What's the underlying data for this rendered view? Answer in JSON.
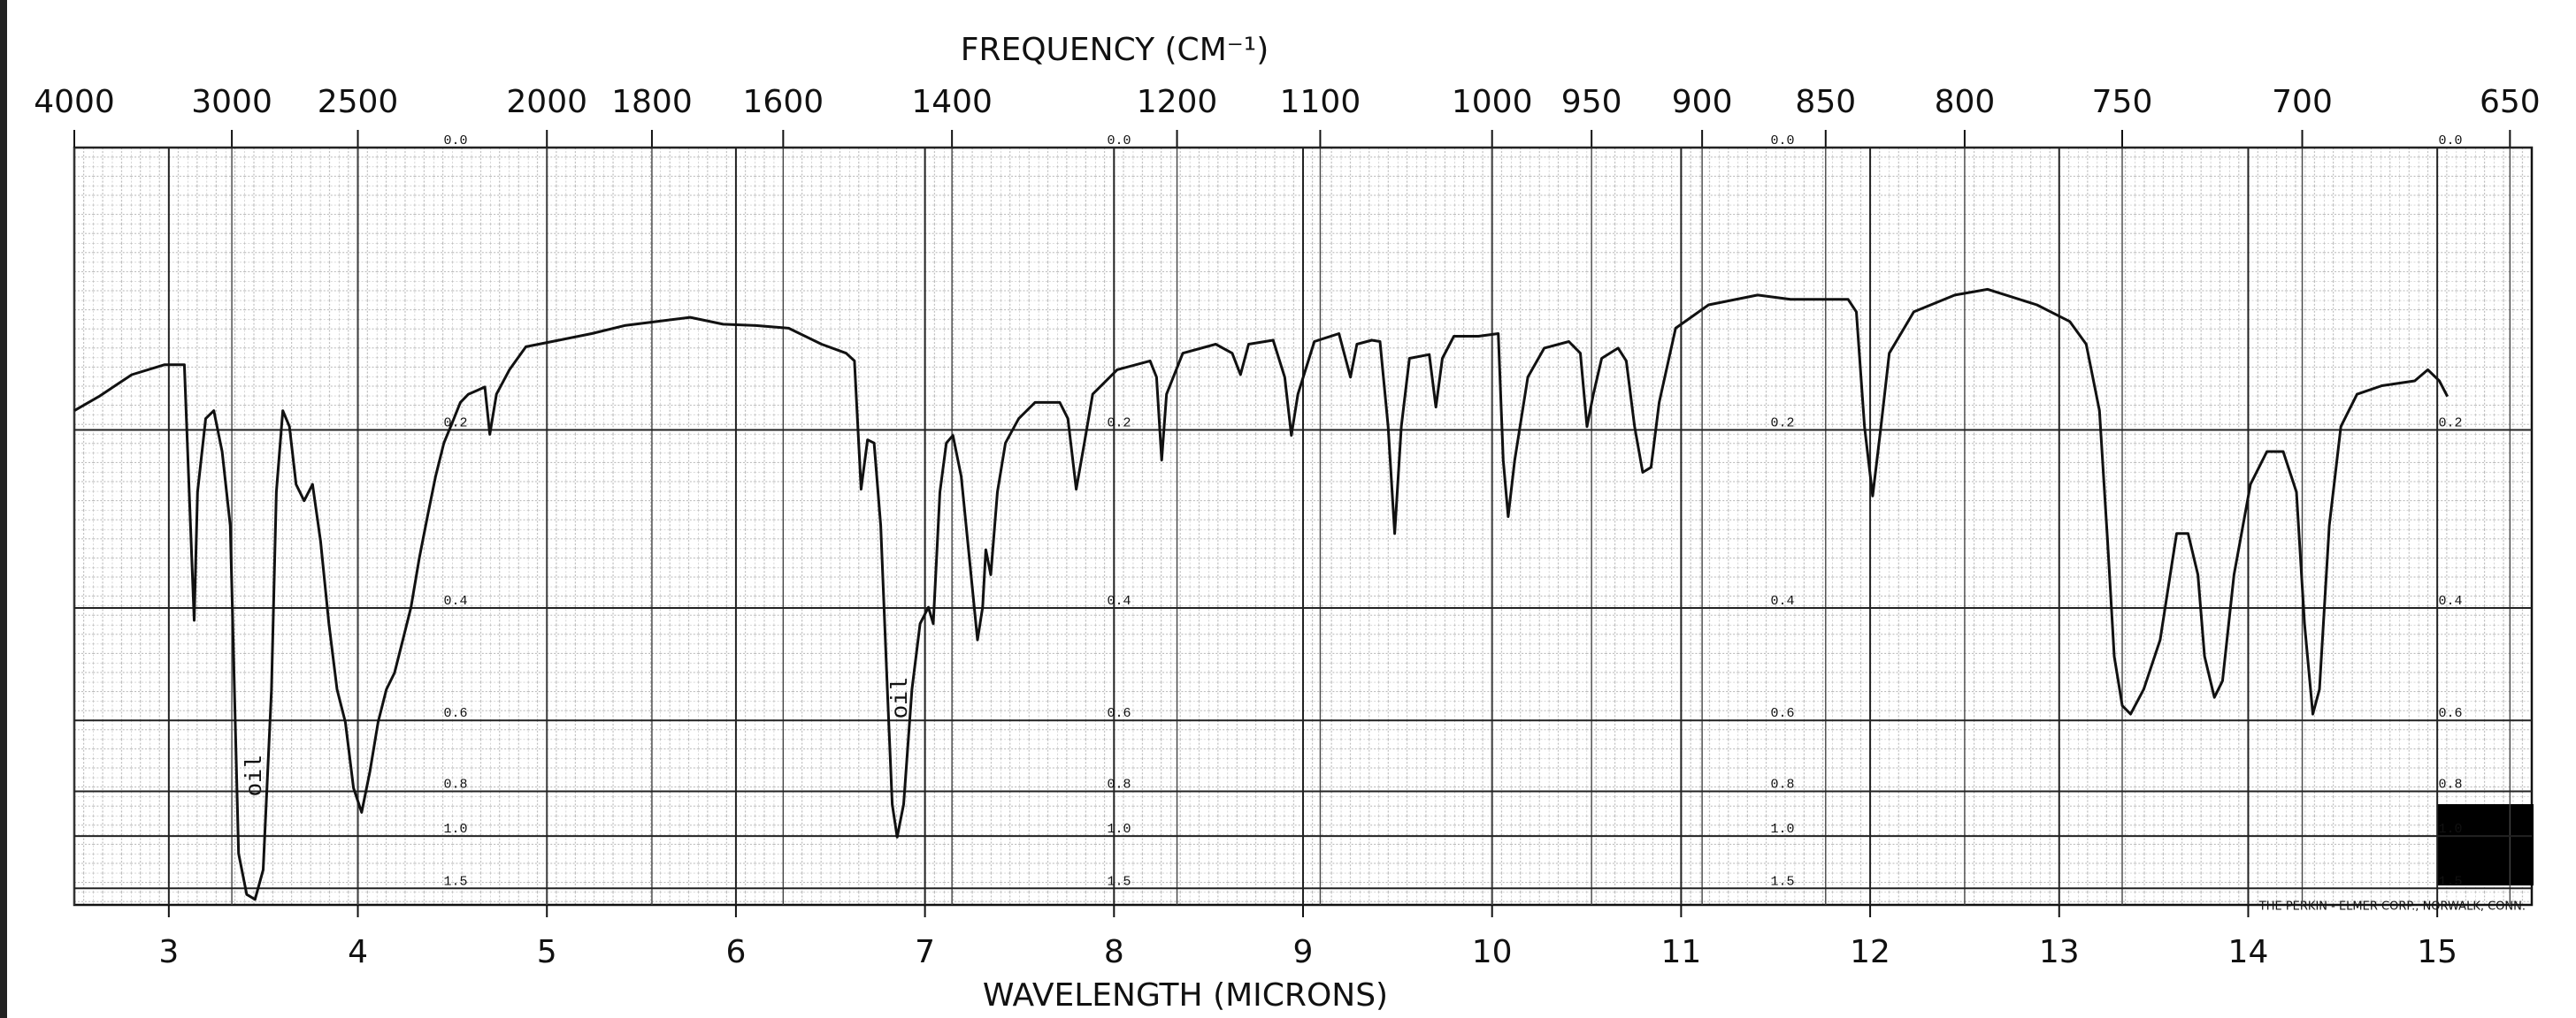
{
  "chart_data": {
    "type": "line",
    "x2label": "FREQUENCY (CM⁻¹)",
    "xlabel": "WAVELENGTH (MICRONS)",
    "xlim": [
      2.5,
      15.5
    ],
    "xticks": [
      3,
      4,
      5,
      6,
      7,
      8,
      9,
      10,
      11,
      12,
      13,
      14,
      15
    ],
    "x2_scale": "reciprocal",
    "x2lim": [
      4000,
      645.2
    ],
    "x2ticks": [
      4000,
      3000,
      2500,
      2000,
      1800,
      1600,
      1400,
      1200,
      1100,
      1000,
      950,
      900,
      850,
      800,
      750,
      700,
      650
    ],
    "y_scale": "transmittance",
    "ylim": [
      0,
      2
    ],
    "yticks": [
      {
        "value": 0,
        "label": "0.0"
      },
      0.2,
      0.4,
      0.6,
      0.8,
      {
        "value": 1,
        "label": "1.0"
      },
      1.5
    ],
    "grid": true,
    "x": [
      2.5,
      2.63,
      2.804,
      2.978,
      3.082,
      3.108,
      3.134,
      3.152,
      3.195,
      3.238,
      3.282,
      3.325,
      3.369,
      3.412,
      3.456,
      3.499,
      3.543,
      3.569,
      3.603,
      3.638,
      3.673,
      3.716,
      3.76,
      3.803,
      3.847,
      3.89,
      3.934,
      3.977,
      4.02,
      4.064,
      4.107,
      4.151,
      4.194,
      4.238,
      4.281,
      4.325,
      4.368,
      4.411,
      4.455,
      4.498,
      4.542,
      4.585,
      4.629,
      4.672,
      4.698,
      4.733,
      4.802,
      4.889,
      5.063,
      5.237,
      5.411,
      5.584,
      5.758,
      5.932,
      6.106,
      6.279,
      6.453,
      6.583,
      6.627,
      6.662,
      6.696,
      6.731,
      6.766,
      6.801,
      6.827,
      6.853,
      6.887,
      6.931,
      6.974,
      7.018,
      7.044,
      7.079,
      7.113,
      7.148,
      7.192,
      7.235,
      7.278,
      7.305,
      7.322,
      7.348,
      7.383,
      7.426,
      7.496,
      7.582,
      7.713,
      7.756,
      7.8,
      7.843,
      7.887,
      8.017,
      8.191,
      8.225,
      8.252,
      8.278,
      8.364,
      8.538,
      8.625,
      8.669,
      8.712,
      8.842,
      8.903,
      8.938,
      8.973,
      9.06,
      9.19,
      9.251,
      9.285,
      9.364,
      9.407,
      9.45,
      9.485,
      9.52,
      9.563,
      9.668,
      9.703,
      9.737,
      9.798,
      9.928,
      10.033,
      10.059,
      10.085,
      10.12,
      10.189,
      10.276,
      10.406,
      10.467,
      10.502,
      10.536,
      10.58,
      10.667,
      10.71,
      10.754,
      10.797,
      10.841,
      10.884,
      10.971,
      11.145,
      11.405,
      11.579,
      11.883,
      11.927,
      11.97,
      12.013,
      12.057,
      12.101,
      12.231,
      12.448,
      12.622,
      12.882,
      13.056,
      13.143,
      13.213,
      13.256,
      13.291,
      13.334,
      13.378,
      13.447,
      13.534,
      13.621,
      13.682,
      13.734,
      13.769,
      13.821,
      13.864,
      13.925,
      14.012,
      14.099,
      14.185,
      14.255,
      14.298,
      14.342,
      14.377,
      14.429,
      14.49,
      14.576,
      14.707,
      14.881,
      14.95,
      15.011,
      15.054
    ],
    "series": [
      {
        "color": "#111111",
        "values": [
          0.183,
          0.171,
          0.153,
          0.145,
          0.145,
          0.26,
          0.418,
          0.26,
          0.19,
          0.183,
          0.22,
          0.296,
          1.112,
          1.627,
          1.764,
          1.253,
          0.535,
          0.26,
          0.183,
          0.197,
          0.252,
          0.269,
          0.252,
          0.314,
          0.423,
          0.535,
          0.604,
          0.788,
          0.883,
          0.734,
          0.604,
          0.535,
          0.504,
          0.448,
          0.399,
          0.334,
          0.286,
          0.244,
          0.212,
          0.194,
          0.176,
          0.169,
          0.166,
          0.163,
          0.204,
          0.169,
          0.149,
          0.131,
          0.126,
          0.121,
          0.115,
          0.112,
          0.109,
          0.114,
          0.115,
          0.117,
          0.129,
          0.136,
          0.142,
          0.257,
          0.209,
          0.212,
          0.296,
          0.535,
          0.849,
          1.006,
          0.849,
          0.535,
          0.423,
          0.399,
          0.423,
          0.26,
          0.212,
          0.205,
          0.244,
          0.334,
          0.448,
          0.399,
          0.324,
          0.355,
          0.26,
          0.212,
          0.19,
          0.176,
          0.176,
          0.19,
          0.257,
          0.212,
          0.169,
          0.149,
          0.142,
          0.155,
          0.228,
          0.169,
          0.136,
          0.129,
          0.136,
          0.153,
          0.129,
          0.126,
          0.155,
          0.205,
          0.169,
          0.127,
          0.121,
          0.155,
          0.129,
          0.126,
          0.127,
          0.197,
          0.305,
          0.197,
          0.14,
          0.137,
          0.18,
          0.14,
          0.123,
          0.123,
          0.121,
          0.228,
          0.286,
          0.228,
          0.155,
          0.132,
          0.127,
          0.136,
          0.197,
          0.169,
          0.14,
          0.132,
          0.142,
          0.197,
          0.24,
          0.235,
          0.176,
          0.117,
          0.1,
          0.093,
          0.096,
          0.096,
          0.105,
          0.197,
          0.264,
          0.197,
          0.136,
          0.105,
          0.093,
          0.089,
          0.1,
          0.112,
          0.129,
          0.183,
          0.314,
          0.475,
          0.568,
          0.586,
          0.535,
          0.448,
          0.305,
          0.305,
          0.355,
          0.475,
          0.551,
          0.519,
          0.355,
          0.252,
          0.22,
          0.22,
          0.26,
          0.423,
          0.586,
          0.535,
          0.296,
          0.197,
          0.169,
          0.162,
          0.158,
          0.149,
          0.158,
          0.171
        ]
      }
    ],
    "annotations": [
      "oil",
      "oil"
    ],
    "credit": "THE PERKIN - ELMER CORP., NORWALK, CONN."
  }
}
